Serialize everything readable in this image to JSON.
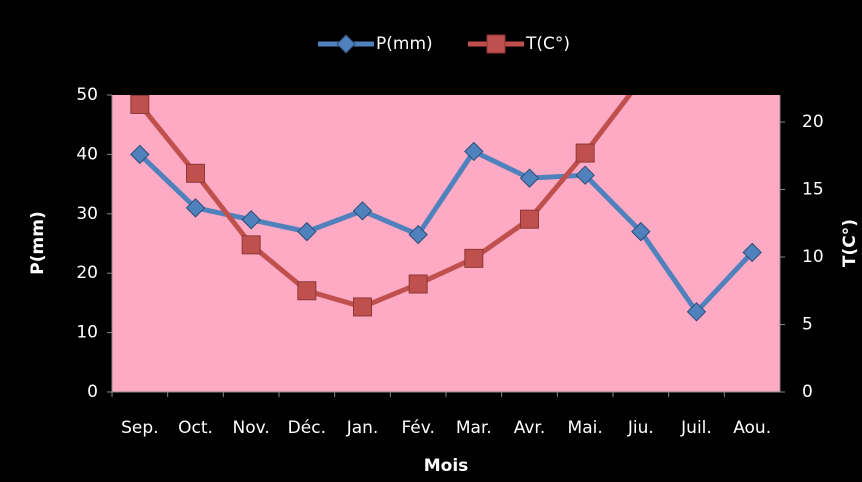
{
  "chart_data": {
    "type": "line",
    "x_label": "Mois",
    "y_label": "P(mm)",
    "y2_label": "T(C°)",
    "categories": [
      "Sep.",
      "Oct.",
      "Nov.",
      "Déc.",
      "Jan.",
      "Fév.",
      "Mar.",
      "Avr.",
      "Mai.",
      "Jiu.",
      "Juil.",
      "Aou."
    ],
    "series": [
      {
        "name": "P(mm)",
        "color": "#4f81bd",
        "marker": "diamond",
        "values": [
          40,
          31,
          29,
          27,
          30.5,
          26.5,
          40.5,
          36,
          36.5,
          27,
          13.5,
          23.5
        ]
      },
      {
        "name": "T(C°)",
        "color": "#c0504d",
        "marker": "square",
        "axis": "y2",
        "values": [
          21.3,
          16.2,
          10.9,
          7.5,
          6.3,
          8.0,
          9.9,
          12.8,
          17.7,
          23.1,
          null,
          null
        ]
      }
    ],
    "ylim": [
      0,
      50
    ],
    "yticks": [
      0,
      10,
      20,
      30,
      40,
      50
    ],
    "y2lim": [
      0,
      22
    ],
    "y2ticks": [
      0,
      5,
      10,
      15,
      20
    ],
    "legend": "top"
  }
}
